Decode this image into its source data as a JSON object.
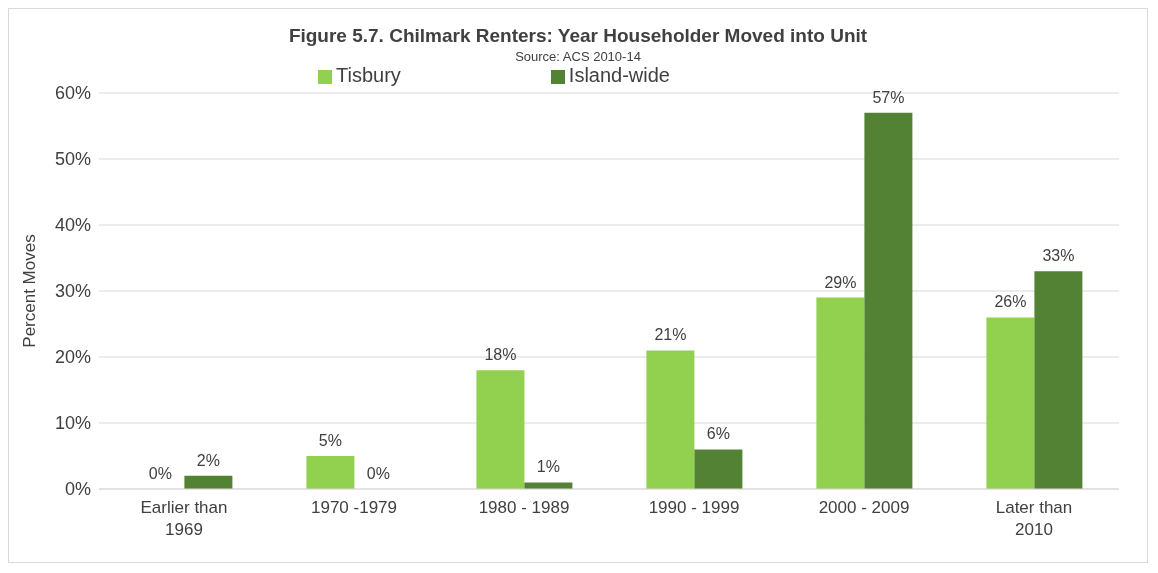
{
  "chart_data": {
    "type": "bar",
    "title": "Figure 5.7. Chilmark Renters: Year Householder Moved into Unit",
    "subtitle": "Source: ACS 2010-14",
    "ylabel": "Percent Moves",
    "categories": [
      "Earlier than 1969",
      "1970 -1979",
      "1980 - 1989",
      "1990 - 1999",
      "2000 - 2009",
      "Later than 2010"
    ],
    "series": [
      {
        "name": "Tisbury",
        "color": "#92d050",
        "values": [
          0,
          5,
          18,
          21,
          29,
          26
        ],
        "value_labels": [
          "0%",
          "5%",
          "18%",
          "21%",
          "29%",
          "26%"
        ]
      },
      {
        "name": "Island-wide",
        "color": "#548235",
        "values": [
          2,
          0,
          1,
          6,
          57,
          33
        ],
        "value_labels": [
          "2%",
          "0%",
          "1%",
          "6%",
          "57%",
          "33%"
        ]
      }
    ],
    "ylim": [
      0,
      60
    ],
    "yticks": [
      {
        "value": 0,
        "label": "0%"
      },
      {
        "value": 10,
        "label": "10%"
      },
      {
        "value": 20,
        "label": "20%"
      },
      {
        "value": 30,
        "label": "30%"
      },
      {
        "value": 40,
        "label": "40%"
      },
      {
        "value": 50,
        "label": "50%"
      },
      {
        "value": 60,
        "label": "60%"
      }
    ],
    "grid": "y",
    "legend": "top"
  }
}
